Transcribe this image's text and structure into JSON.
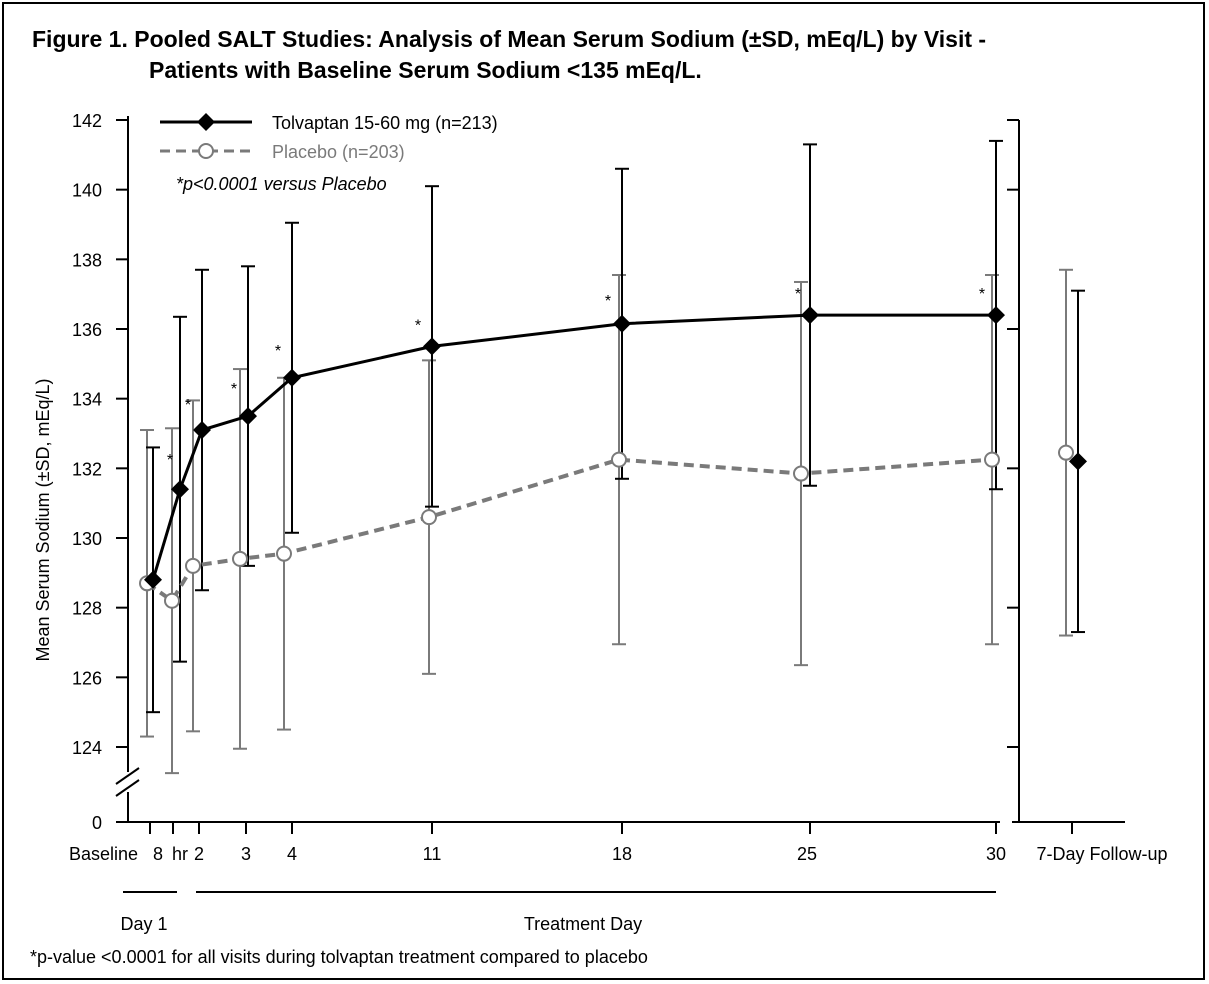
{
  "figure": {
    "title_line1": "Figure 1.  Pooled SALT Studies: Analysis of Mean Serum Sodium (±SD, mEq/L) by Visit -",
    "title_line2": "Patients with Baseline Serum Sodium <135 mEq/L.",
    "footnote": "*p-value <0.0001 for all visits during tolvaptan treatment compared to placebo"
  },
  "chart_data": {
    "type": "line",
    "title": "Pooled SALT Studies: Analysis of Mean Serum Sodium (±SD, mEq/L) by Visit - Patients with Baseline Serum Sodium <135 mEq/L.",
    "ylabel": "Mean Serum Sodium (±SD, mEq/L)",
    "ylim": [
      124,
      142
    ],
    "yticks": [
      "142",
      "140",
      "138",
      "136",
      "134",
      "132",
      "130",
      "128",
      "126",
      "124"
    ],
    "y_break_label": "0",
    "x_categories": [
      "Baseline",
      "8 hr",
      "2",
      "3",
      "4",
      "11",
      "18",
      "25",
      "30",
      "7-Day Follow-up"
    ],
    "x_tick_labels": [
      "Baseline",
      "8",
      "hr",
      "2",
      "3",
      "4",
      "11",
      "18",
      "25",
      "30",
      "7-Day Follow-up"
    ],
    "x_groups": [
      "Day 1",
      "Treatment Day"
    ],
    "annotation": "*p<0.0001 versus Placebo",
    "significance_marker": "*",
    "series": [
      {
        "name": "Tolvaptan 15-60 mg (n=213)",
        "color": "#000000",
        "marker": "diamond",
        "line_style": "solid",
        "mean": [
          128.8,
          131.4,
          133.1,
          133.5,
          134.6,
          135.5,
          136.15,
          136.4,
          136.4,
          132.2
        ],
        "sd": [
          3.8,
          4.95,
          4.6,
          4.3,
          4.45,
          4.6,
          4.45,
          4.9,
          5.0,
          4.9
        ],
        "significant": [
          false,
          true,
          true,
          true,
          true,
          true,
          true,
          true,
          true,
          false
        ]
      },
      {
        "name": "Placebo (n=203)",
        "color": "#7a7a7a",
        "marker": "open-circle",
        "line_style": "dashed",
        "mean": [
          128.7,
          128.2,
          129.2,
          129.4,
          129.55,
          130.6,
          132.25,
          131.85,
          132.25,
          132.45
        ],
        "sd": [
          4.4,
          4.95,
          4.75,
          5.45,
          5.05,
          4.5,
          5.3,
          5.5,
          5.3,
          5.25
        ]
      }
    ]
  }
}
